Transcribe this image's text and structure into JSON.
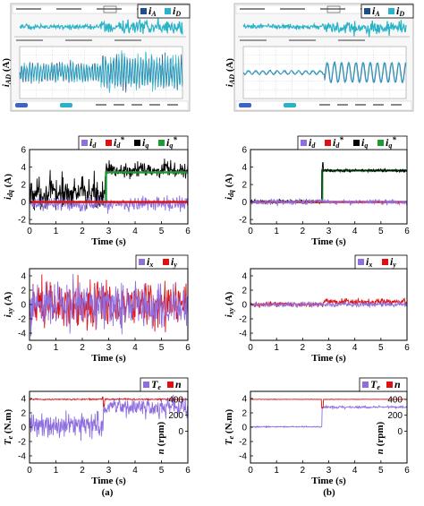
{
  "colors": {
    "osc_bg": "#ffffff",
    "osc_grid": "#c8c8c8",
    "osc_trace": "#29b3c9",
    "osc_trace_dark": "#1f4f8a",
    "id": "#8f6fe0",
    "id_ref": "#e01010",
    "iq": "#000000",
    "iq_ref": "#1f9b35",
    "ix": "#8f6fe0",
    "iy": "#e01010",
    "te": "#8f6fe0",
    "speed": "#e01010"
  },
  "captions": {
    "a": "(a)",
    "b": "(b)"
  },
  "oscilloscope": {
    "a": {
      "legend": [
        {
          "sym": "i",
          "sub": "A",
          "color": "#1f4f8a"
        },
        {
          "sym": "i",
          "sub": "D",
          "color": "#29b3c9"
        }
      ],
      "ylabel": "i_AD (A)",
      "step_fraction": 0.5
    },
    "b": {
      "legend": [
        {
          "sym": "i",
          "sub": "A",
          "color": "#1f4f8a"
        },
        {
          "sym": "i",
          "sub": "D",
          "color": "#29b3c9"
        }
      ],
      "ylabel": "i_AD (A)",
      "step_fraction": 0.5
    }
  },
  "chart_data": [
    {
      "id": "dq-a",
      "type": "line",
      "xlabel": "Time (s)",
      "ylabel": "i_dq (A)",
      "xlim": [
        0,
        6
      ],
      "ylim": [
        -2.5,
        6
      ],
      "xticks": [
        0,
        1,
        2,
        3,
        4,
        5,
        6
      ],
      "yticks": [
        -2,
        0,
        2,
        4,
        6
      ],
      "legend": [
        {
          "sym": "i",
          "sub": "d",
          "star": false,
          "color": "#8f6fe0"
        },
        {
          "sym": "i",
          "sub": "d",
          "star": true,
          "color": "#e01010"
        },
        {
          "sym": "i",
          "sub": "q",
          "star": false,
          "color": "#000000"
        },
        {
          "sym": "i",
          "sub": "q",
          "star": true,
          "color": "#1f9b35"
        }
      ],
      "series": [
        {
          "name": "i_q",
          "color": "#000000",
          "kind": "noise",
          "segments": [
            [
              0,
              2.9,
              1.0,
              1.3
            ],
            [
              2.9,
              6,
              3.6,
              0.7
            ]
          ]
        },
        {
          "name": "i_d",
          "color": "#8f6fe0",
          "kind": "noise",
          "segments": [
            [
              0,
              6,
              -0.2,
              0.6
            ]
          ]
        },
        {
          "name": "i_q*",
          "color": "#1f9b35",
          "kind": "step",
          "points": [
            [
              0,
              0
            ],
            [
              2.9,
              0
            ],
            [
              2.9,
              3.4
            ],
            [
              6,
              3.4
            ]
          ]
        },
        {
          "name": "i_d*",
          "color": "#e01010",
          "kind": "step",
          "points": [
            [
              0,
              0
            ],
            [
              6,
              0
            ]
          ]
        }
      ]
    },
    {
      "id": "dq-b",
      "type": "line",
      "xlabel": "Time (s)",
      "ylabel": "i_dq (A)",
      "xlim": [
        0,
        6
      ],
      "ylim": [
        -2.5,
        6
      ],
      "xticks": [
        0,
        1,
        2,
        3,
        4,
        5,
        6
      ],
      "yticks": [
        -2,
        0,
        2,
        4,
        6
      ],
      "legend": [
        {
          "sym": "i",
          "sub": "d",
          "star": false,
          "color": "#8f6fe0"
        },
        {
          "sym": "i",
          "sub": "d",
          "star": true,
          "color": "#e01010"
        },
        {
          "sym": "i",
          "sub": "q",
          "star": false,
          "color": "#000000"
        },
        {
          "sym": "i",
          "sub": "q",
          "star": true,
          "color": "#1f9b35"
        }
      ],
      "series": [
        {
          "name": "i_q*",
          "color": "#1f9b35",
          "kind": "step",
          "points": [
            [
              0,
              0
            ],
            [
              2.75,
              0
            ],
            [
              2.75,
              3.6
            ],
            [
              6,
              3.6
            ]
          ]
        },
        {
          "name": "i_q",
          "color": "#000000",
          "kind": "noise",
          "segments": [
            [
              0,
              2.75,
              0.05,
              0.15
            ],
            [
              2.75,
              6,
              3.6,
              0.12
            ]
          ],
          "spike": [
            2.78,
            4.5
          ]
        },
        {
          "name": "i_d*",
          "color": "#e01010",
          "kind": "step",
          "points": [
            [
              0,
              0
            ],
            [
              6,
              0
            ]
          ]
        },
        {
          "name": "i_d",
          "color": "#8f6fe0",
          "kind": "noise",
          "segments": [
            [
              0,
              6,
              0.0,
              0.22
            ]
          ]
        }
      ]
    },
    {
      "id": "xy-a",
      "type": "line",
      "xlabel": "Time (s)",
      "ylabel": "i_xy (A)",
      "xlim": [
        0,
        6
      ],
      "ylim": [
        -5,
        5
      ],
      "xticks": [
        0,
        1,
        2,
        3,
        4,
        5,
        6
      ],
      "yticks": [
        -4,
        -2,
        0,
        2,
        4
      ],
      "legend": [
        {
          "sym": "i",
          "sub": "x",
          "star": false,
          "color": "#8f6fe0"
        },
        {
          "sym": "i",
          "sub": "y",
          "star": false,
          "color": "#e01010"
        }
      ],
      "series": [
        {
          "name": "i_y",
          "color": "#e01010",
          "kind": "noise",
          "segments": [
            [
              0,
              6,
              0,
              2.3
            ]
          ]
        },
        {
          "name": "i_x",
          "color": "#8f6fe0",
          "kind": "noise",
          "segments": [
            [
              0,
              6,
              0,
              2.3
            ]
          ]
        }
      ]
    },
    {
      "id": "xy-b",
      "type": "line",
      "xlabel": "Time (s)",
      "ylabel": "i_xy (A)",
      "xlim": [
        0,
        6
      ],
      "ylim": [
        -5,
        5
      ],
      "xticks": [
        0,
        1,
        2,
        3,
        4,
        5,
        6
      ],
      "yticks": [
        -4,
        -2,
        0,
        2,
        4
      ],
      "legend": [
        {
          "sym": "i",
          "sub": "x",
          "star": false,
          "color": "#8f6fe0"
        },
        {
          "sym": "i",
          "sub": "y",
          "star": false,
          "color": "#e01010"
        }
      ],
      "series": [
        {
          "name": "i_y",
          "color": "#e01010",
          "kind": "noise",
          "segments": [
            [
              0,
              2.8,
              0,
              0.25
            ],
            [
              2.8,
              6,
              0.4,
              0.3
            ]
          ]
        },
        {
          "name": "i_x",
          "color": "#8f6fe0",
          "kind": "noise",
          "segments": [
            [
              0,
              6,
              0,
              0.25
            ]
          ]
        }
      ]
    },
    {
      "id": "ten-a",
      "type": "line",
      "xlabel": "Time (s)",
      "ylabel": "T_e (N.m)",
      "ylabel2": "n (rpm)",
      "xlim": [
        0,
        6
      ],
      "ylim": [
        -5,
        5
      ],
      "ylim2": [
        -400,
        500
      ],
      "xticks": [
        0,
        1,
        2,
        3,
        4,
        5,
        6
      ],
      "yticks": [
        -4,
        -2,
        0,
        2,
        4
      ],
      "yticks2": [
        0,
        200,
        400
      ],
      "legend": [
        {
          "sym": "T",
          "sub": "e",
          "star": false,
          "color": "#8f6fe0"
        },
        {
          "sym": "n",
          "sub": "",
          "star": false,
          "color": "#e01010"
        }
      ],
      "series": [
        {
          "name": "T_e",
          "color": "#8f6fe0",
          "axis": "left",
          "kind": "noise",
          "segments": [
            [
              0,
              2.8,
              0.3,
              1.3
            ],
            [
              2.8,
              6,
              2.8,
              0.9
            ]
          ]
        },
        {
          "name": "n",
          "color": "#e01010",
          "axis": "right",
          "kind": "noise",
          "segments": [
            [
              0,
              6,
              400,
              6
            ]
          ],
          "spike": [
            2.78,
            430
          ],
          "dip": [
            2.82,
            310
          ]
        }
      ]
    },
    {
      "id": "ten-b",
      "type": "line",
      "xlabel": "Time (s)",
      "ylabel": "T_e (N.m)",
      "ylabel2": "n (rpm)",
      "xlim": [
        0,
        6
      ],
      "ylim": [
        -5,
        5
      ],
      "ylim2": [
        -400,
        500
      ],
      "xticks": [
        0,
        1,
        2,
        3,
        4,
        5,
        6
      ],
      "yticks": [
        -4,
        -2,
        0,
        2,
        4
      ],
      "yticks2": [
        0,
        200,
        400
      ],
      "legend": [
        {
          "sym": "T",
          "sub": "e",
          "star": false,
          "color": "#8f6fe0"
        },
        {
          "sym": "n",
          "sub": "",
          "star": false,
          "color": "#e01010"
        }
      ],
      "series": [
        {
          "name": "T_e",
          "color": "#8f6fe0",
          "axis": "left",
          "kind": "noise",
          "segments": [
            [
              0,
              2.75,
              0.05,
              0.06
            ],
            [
              2.75,
              6,
              2.8,
              0.12
            ]
          ]
        },
        {
          "name": "n",
          "color": "#e01010",
          "axis": "right",
          "kind": "noise",
          "segments": [
            [
              0,
              6,
              400,
              2
            ]
          ],
          "dip": [
            2.76,
            290
          ]
        }
      ]
    }
  ]
}
